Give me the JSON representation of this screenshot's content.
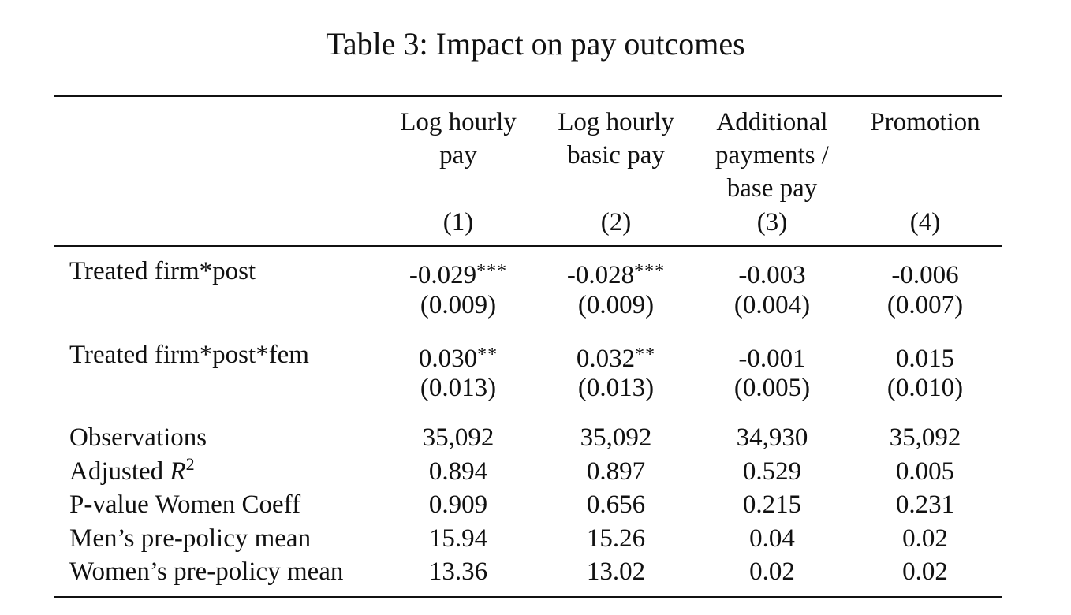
{
  "title": "Table 3: Impact on pay outcomes",
  "columns": [
    {
      "header_lines": [
        "Log hourly",
        "pay"
      ],
      "number": "(1)"
    },
    {
      "header_lines": [
        "Log hourly",
        "basic pay"
      ],
      "number": "(2)"
    },
    {
      "header_lines": [
        "Additional",
        "payments /",
        "base pay"
      ],
      "number": "(3)"
    },
    {
      "header_lines": [
        "Promotion"
      ],
      "number": "(4)"
    }
  ],
  "coef_rows": [
    {
      "label": "Treated firm*post",
      "coefs": [
        {
          "value": "-0.029",
          "stars": "***"
        },
        {
          "value": "-0.028",
          "stars": "***"
        },
        {
          "value": "-0.003",
          "stars": ""
        },
        {
          "value": "-0.006",
          "stars": ""
        }
      ],
      "se": [
        "(0.009)",
        "(0.009)",
        "(0.004)",
        "(0.007)"
      ]
    },
    {
      "label": "Treated firm*post*fem",
      "coefs": [
        {
          "value": "0.030",
          "stars": "**"
        },
        {
          "value": "0.032",
          "stars": "**"
        },
        {
          "value": "-0.001",
          "stars": ""
        },
        {
          "value": "0.015",
          "stars": ""
        }
      ],
      "se": [
        "(0.013)",
        "(0.013)",
        "(0.005)",
        "(0.010)"
      ]
    }
  ],
  "stat_rows": [
    {
      "label": "Observations",
      "values": [
        "35,092",
        "35,092",
        "34,930",
        "35,092"
      ]
    },
    {
      "label": "Adjusted ",
      "label_math": "R",
      "label_sup": "2",
      "values": [
        "0.894",
        "0.897",
        "0.529",
        "0.005"
      ]
    },
    {
      "label": "P-value Women Coeff",
      "values": [
        "0.909",
        "0.656",
        "0.215",
        "0.231"
      ]
    },
    {
      "label": "Men’s pre-policy mean",
      "values": [
        "15.94",
        "15.26",
        "0.04",
        "0.02"
      ]
    },
    {
      "label": "Women’s pre-policy mean",
      "values": [
        "13.36",
        "13.02",
        "0.02",
        "0.02"
      ]
    }
  ]
}
